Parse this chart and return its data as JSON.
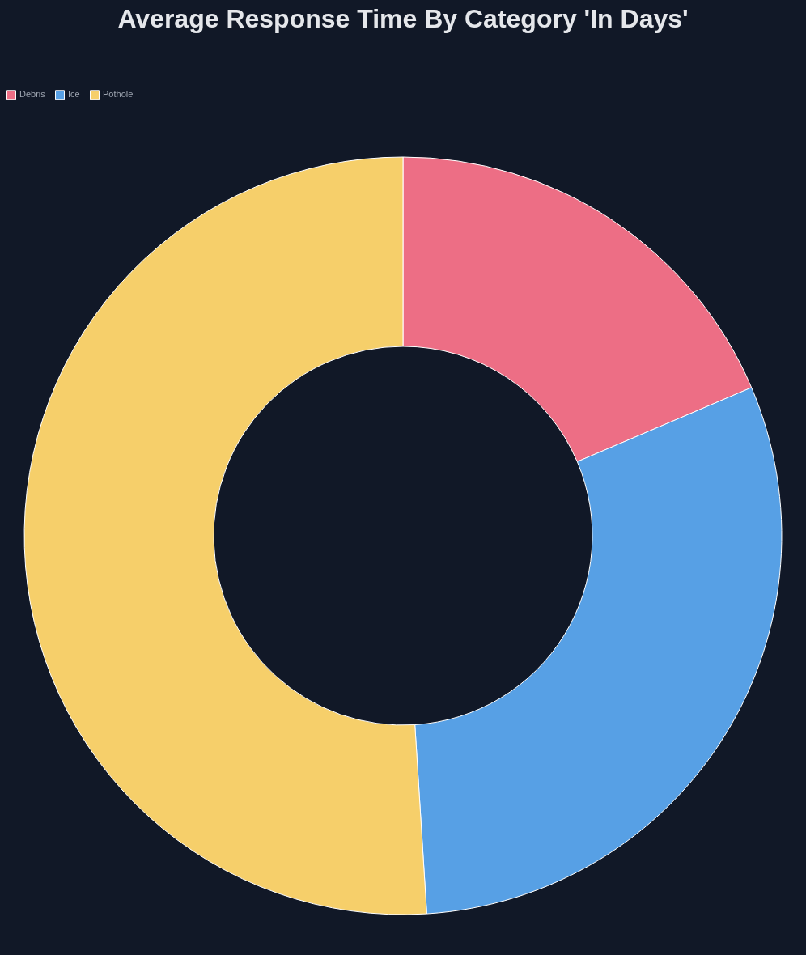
{
  "chart_data": {
    "type": "donut",
    "title": "Average Response Time By Category 'In Days'",
    "categories": [
      "Debris",
      "Ice",
      "Pothole"
    ],
    "values": [
      18.6,
      30.4,
      51.0
    ],
    "colors": [
      "#ed6e85",
      "#57a0e5",
      "#f6cf6a"
    ],
    "legend": "top"
  }
}
